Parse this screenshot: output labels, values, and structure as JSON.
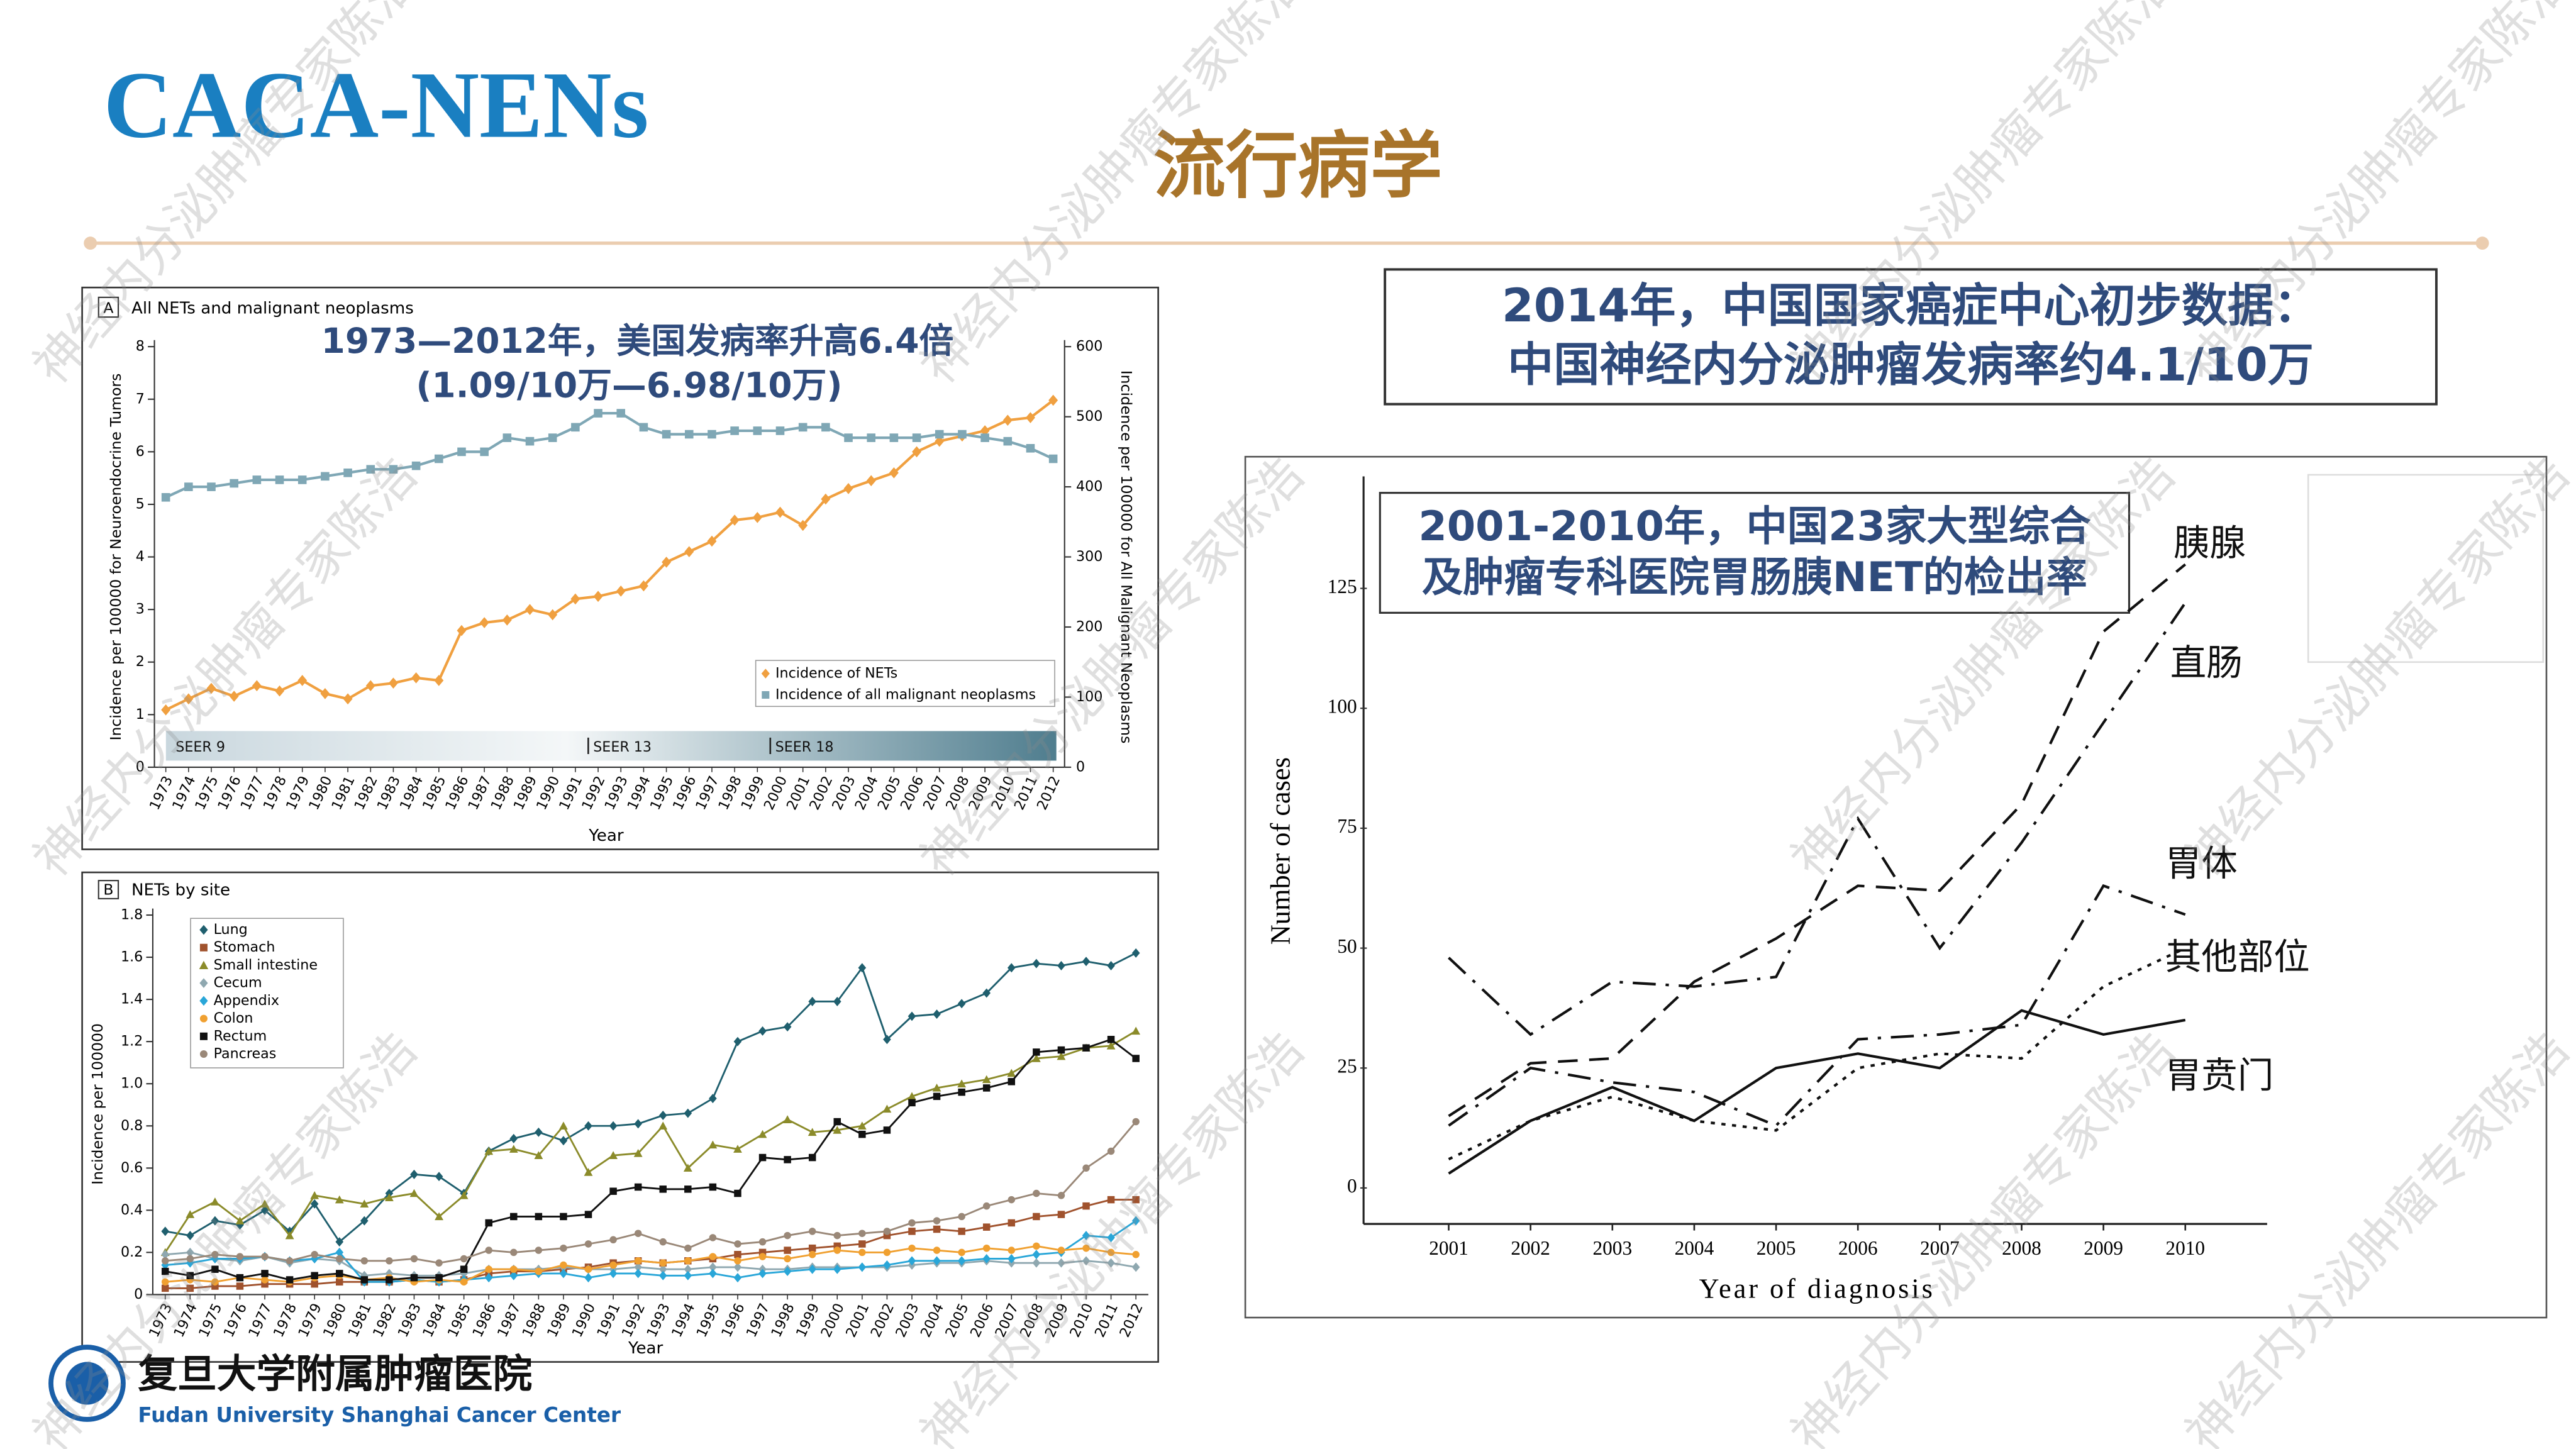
{
  "header": {
    "title": "CACA-NENs",
    "subtitle": "流行病学"
  },
  "callout": [
    "2014年，中国国家癌症中心初步数据：",
    "中国神经内分泌肿瘤发病率约4.1/10万"
  ],
  "watermark": "神经内分泌肿瘤专家陈浩",
  "footer": {
    "name_cn": "复旦大学附属肿瘤医院",
    "name_en": "Fudan University Shanghai Cancer Center"
  },
  "chart_data": [
    {
      "type": "line",
      "panel": "A",
      "title": "All NETs and malignant neoplasms",
      "annotations": [
        "1973—2012年，美国发病率升高6.4倍",
        "(1.09/10万—6.98/10万)"
      ],
      "xlabel": "Year",
      "ylabel": "Incidence per 100000 for Neuroendocrine Tumors",
      "y2label": "Incidence per 100000 for All Malignant Neoplasms",
      "x": [
        1973,
        1974,
        1975,
        1976,
        1977,
        1978,
        1979,
        1980,
        1981,
        1982,
        1983,
        1984,
        1985,
        1986,
        1987,
        1988,
        1989,
        1990,
        1991,
        1992,
        1993,
        1994,
        1995,
        1996,
        1997,
        1998,
        1999,
        2000,
        2001,
        2002,
        2003,
        2004,
        2005,
        2006,
        2007,
        2008,
        2009,
        2010,
        2011,
        2012
      ],
      "xlim": [
        1972.5,
        2012.5
      ],
      "ylim": [
        0,
        8
      ],
      "yticks": [
        0,
        1,
        2,
        3,
        4,
        5,
        6,
        7,
        8
      ],
      "y2lim": [
        0,
        600
      ],
      "y2ticks": [
        0,
        100,
        200,
        300,
        400,
        500,
        600
      ],
      "legend": "lower right",
      "seer": [
        {
          "label": "SEER 9",
          "x": 1973
        },
        {
          "label": "SEER 13",
          "x": 1992
        },
        {
          "label": "SEER 18",
          "x": 2000
        }
      ],
      "series": [
        {
          "name": "Incidence of NETs",
          "color": "#f0a040",
          "marker": "diamond",
          "values": [
            1.09,
            1.3,
            1.5,
            1.35,
            1.55,
            1.45,
            1.65,
            1.4,
            1.3,
            1.55,
            1.6,
            1.7,
            1.65,
            2.6,
            2.75,
            2.8,
            3.0,
            2.9,
            3.2,
            3.25,
            3.35,
            3.45,
            3.9,
            4.1,
            4.3,
            4.7,
            4.75,
            4.85,
            4.6,
            5.1,
            5.3,
            5.45,
            5.6,
            6.0,
            6.2,
            6.3,
            6.4,
            6.6,
            6.65,
            6.98
          ]
        },
        {
          "name": "Incidence of all malignant neoplasms",
          "color": "#7fa7b5",
          "marker": "square",
          "axis": "y2",
          "values": [
            385,
            400,
            400,
            405,
            410,
            410,
            410,
            415,
            420,
            425,
            425,
            430,
            440,
            450,
            450,
            470,
            465,
            470,
            485,
            505,
            505,
            485,
            475,
            475,
            475,
            480,
            480,
            480,
            485,
            485,
            470,
            470,
            470,
            470,
            475,
            475,
            470,
            465,
            455,
            440
          ]
        }
      ]
    },
    {
      "type": "line",
      "panel": "B",
      "title": "NETs by site",
      "xlabel": "Year",
      "ylabel": "Incidence per 100000",
      "x": [
        1973,
        1974,
        1975,
        1976,
        1977,
        1978,
        1979,
        1980,
        1981,
        1982,
        1983,
        1984,
        1985,
        1986,
        1987,
        1988,
        1989,
        1990,
        1991,
        1992,
        1993,
        1994,
        1995,
        1996,
        1997,
        1998,
        1999,
        2000,
        2001,
        2002,
        2003,
        2004,
        2005,
        2006,
        2007,
        2008,
        2009,
        2010,
        2011,
        2012
      ],
      "xlim": [
        1972.5,
        2012.5
      ],
      "ylim": [
        0,
        1.8
      ],
      "yticks": [
        0,
        0.2,
        0.4,
        0.6,
        0.8,
        {
          "value": 1,
          "label": "1.0"
        },
        1.2,
        1.4,
        1.6,
        1.8
      ],
      "legend": "upper left",
      "series": [
        {
          "name": "Lung",
          "color": "#1f5f6e",
          "marker": "diamond",
          "values": [
            0.3,
            0.28,
            0.35,
            0.33,
            0.4,
            0.3,
            0.43,
            0.25,
            0.35,
            0.48,
            0.57,
            0.56,
            0.48,
            0.68,
            0.74,
            0.77,
            0.73,
            0.8,
            0.8,
            0.81,
            0.85,
            0.86,
            0.93,
            1.2,
            1.25,
            1.27,
            1.39,
            1.39,
            1.55,
            1.21,
            1.32,
            1.33,
            1.38,
            1.43,
            1.55,
            1.57,
            1.56,
            1.58,
            1.56,
            1.62
          ]
        },
        {
          "name": "Stomach",
          "color": "#a0522d",
          "marker": "square",
          "values": [
            0.03,
            0.03,
            0.04,
            0.04,
            0.05,
            0.05,
            0.05,
            0.06,
            0.06,
            0.06,
            0.07,
            0.06,
            0.07,
            0.1,
            0.11,
            0.11,
            0.12,
            0.13,
            0.15,
            0.16,
            0.15,
            0.16,
            0.17,
            0.19,
            0.2,
            0.21,
            0.22,
            0.23,
            0.24,
            0.28,
            0.3,
            0.31,
            0.3,
            0.32,
            0.34,
            0.37,
            0.38,
            0.42,
            0.45,
            0.45
          ]
        },
        {
          "name": "Small intestine",
          "color": "#8b8b2a",
          "marker": "triangle",
          "values": [
            0.2,
            0.38,
            0.44,
            0.35,
            0.43,
            0.28,
            0.47,
            0.45,
            0.43,
            0.46,
            0.48,
            0.37,
            0.47,
            0.68,
            0.69,
            0.66,
            0.8,
            0.58,
            0.66,
            0.67,
            0.8,
            0.6,
            0.71,
            0.69,
            0.76,
            0.83,
            0.77,
            0.78,
            0.8,
            0.88,
            0.94,
            0.98,
            1.0,
            1.02,
            1.05,
            1.12,
            1.13,
            1.17,
            1.18,
            1.25
          ]
        },
        {
          "name": "Cecum",
          "color": "#8fa8b0",
          "marker": "diamond",
          "values": [
            0.19,
            0.2,
            0.17,
            0.16,
            0.18,
            0.15,
            0.17,
            0.16,
            0.09,
            0.1,
            0.09,
            0.09,
            0.1,
            0.12,
            0.12,
            0.12,
            0.13,
            0.12,
            0.12,
            0.13,
            0.12,
            0.12,
            0.13,
            0.13,
            0.12,
            0.12,
            0.13,
            0.13,
            0.13,
            0.13,
            0.14,
            0.15,
            0.15,
            0.16,
            0.15,
            0.15,
            0.15,
            0.16,
            0.15,
            0.13
          ]
        },
        {
          "name": "Appendix",
          "color": "#29a6d8",
          "marker": "diamond",
          "values": [
            0.14,
            0.15,
            0.17,
            0.17,
            0.18,
            0.16,
            0.17,
            0.2,
            0.06,
            0.06,
            0.07,
            0.06,
            0.07,
            0.08,
            0.09,
            0.1,
            0.1,
            0.08,
            0.1,
            0.1,
            0.09,
            0.09,
            0.1,
            0.08,
            0.1,
            0.11,
            0.12,
            0.12,
            0.13,
            0.14,
            0.16,
            0.16,
            0.16,
            0.17,
            0.17,
            0.19,
            0.2,
            0.28,
            0.27,
            0.35
          ]
        },
        {
          "name": "Colon",
          "color": "#f0a030",
          "marker": "circle",
          "values": [
            0.06,
            0.07,
            0.06,
            0.08,
            0.07,
            0.06,
            0.08,
            0.09,
            0.07,
            0.08,
            0.06,
            0.07,
            0.06,
            0.12,
            0.12,
            0.11,
            0.14,
            0.12,
            0.14,
            0.16,
            0.15,
            0.16,
            0.18,
            0.16,
            0.18,
            0.17,
            0.19,
            0.21,
            0.2,
            0.2,
            0.22,
            0.21,
            0.2,
            0.22,
            0.21,
            0.23,
            0.21,
            0.22,
            0.2,
            0.19
          ]
        },
        {
          "name": "Rectum",
          "color": "#111111",
          "marker": "square",
          "values": [
            0.11,
            0.09,
            0.12,
            0.08,
            0.1,
            0.07,
            0.09,
            0.1,
            0.07,
            0.07,
            0.08,
            0.08,
            0.12,
            0.34,
            0.37,
            0.37,
            0.37,
            0.38,
            0.49,
            0.51,
            0.5,
            0.5,
            0.51,
            0.48,
            0.65,
            0.64,
            0.65,
            0.82,
            0.76,
            0.78,
            0.91,
            0.94,
            0.96,
            0.98,
            1.01,
            1.15,
            1.16,
            1.17,
            1.21,
            1.12
          ]
        },
        {
          "name": "Pancreas",
          "color": "#9a8878",
          "marker": "circle",
          "values": [
            0.16,
            0.17,
            0.19,
            0.18,
            0.18,
            0.16,
            0.19,
            0.17,
            0.16,
            0.16,
            0.17,
            0.15,
            0.17,
            0.21,
            0.2,
            0.21,
            0.22,
            0.24,
            0.26,
            0.29,
            0.25,
            0.22,
            0.27,
            0.24,
            0.25,
            0.28,
            0.3,
            0.28,
            0.29,
            0.3,
            0.34,
            0.35,
            0.37,
            0.42,
            0.45,
            0.48,
            0.47,
            0.6,
            0.68,
            0.82
          ]
        }
      ]
    },
    {
      "type": "line",
      "annotations": [
        "2001-2010年，中国23家大型综合",
        "及肿瘤专科医院胃肠胰NET的检出率"
      ],
      "xlabel": "Year of diagnosis",
      "ylabel": "Number of cases",
      "x": [
        2001,
        2002,
        2003,
        2004,
        2005,
        2006,
        2007,
        2008,
        2009,
        2010
      ],
      "xlim": [
        2000,
        2011
      ],
      "xticks": [
        2001,
        2002,
        2003,
        2004,
        2005,
        2006,
        2007,
        2008,
        2009,
        2010
      ],
      "ylim": [
        -7.5,
        148
      ],
      "yticks": [
        0,
        25,
        50,
        75,
        100,
        125
      ],
      "series": [
        {
          "name": "胰腺",
          "color": "#111111",
          "dash": "dashed",
          "values": [
            15,
            26,
            27,
            43,
            52,
            63,
            62,
            80,
            116,
            130
          ]
        },
        {
          "name": "直肠",
          "color": "#111111",
          "dash": "dashdot",
          "values": [
            48,
            32,
            43,
            42,
            44,
            77,
            50,
            72,
            97,
            122
          ]
        },
        {
          "name": "胃体",
          "color": "#111111",
          "dash": "dashdot",
          "values": [
            13,
            25,
            22,
            20,
            13,
            31,
            32,
            34,
            63,
            57
          ]
        },
        {
          "name": "其他部位",
          "color": "#111111",
          "dash": "dotted",
          "values": [
            6,
            14,
            19,
            14,
            12,
            25,
            28,
            27,
            42,
            50
          ]
        },
        {
          "name": "胃贲门",
          "color": "#111111",
          "dash": "solid",
          "values": [
            3,
            14,
            21,
            14,
            25,
            28,
            25,
            37,
            32,
            35
          ]
        }
      ]
    }
  ]
}
